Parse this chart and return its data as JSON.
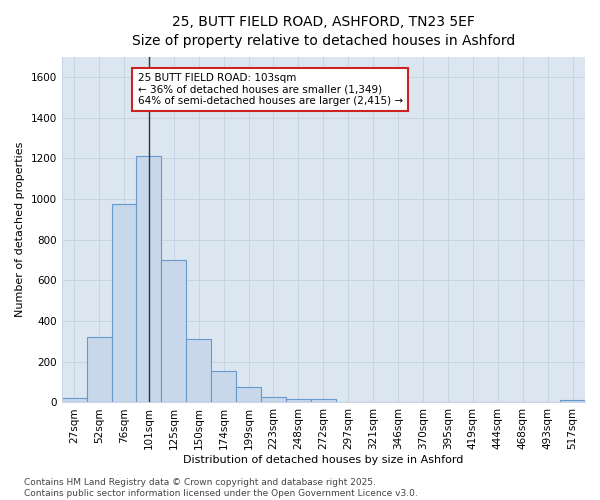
{
  "title_line1": "25, BUTT FIELD ROAD, ASHFORD, TN23 5EF",
  "title_line2": "Size of property relative to detached houses in Ashford",
  "xlabel": "Distribution of detached houses by size in Ashford",
  "ylabel": "Number of detached properties",
  "categories": [
    "27sqm",
    "52sqm",
    "76sqm",
    "101sqm",
    "125sqm",
    "150sqm",
    "174sqm",
    "199sqm",
    "223sqm",
    "248sqm",
    "272sqm",
    "297sqm",
    "321sqm",
    "346sqm",
    "370sqm",
    "395sqm",
    "419sqm",
    "444sqm",
    "468sqm",
    "493sqm",
    "517sqm"
  ],
  "values": [
    20,
    320,
    975,
    1210,
    700,
    310,
    155,
    75,
    25,
    15,
    15,
    0,
    0,
    0,
    0,
    0,
    0,
    0,
    0,
    0,
    10
  ],
  "bar_color": "#c8d8ea",
  "bar_edge_color": "#6699cc",
  "marker_index": 3,
  "annotation_line1": "25 BUTT FIELD ROAD: 103sqm",
  "annotation_line2": "← 36% of detached houses are smaller (1,349)",
  "annotation_line3": "64% of semi-detached houses are larger (2,415) →",
  "annotation_box_facecolor": "#ffffff",
  "annotation_box_edgecolor": "#cc2222",
  "vline_color": "#333333",
  "ylim": [
    0,
    1700
  ],
  "yticks": [
    0,
    200,
    400,
    600,
    800,
    1000,
    1200,
    1400,
    1600
  ],
  "grid_color": "#c8d4e4",
  "background_color": "#ffffff",
  "plot_bg_color": "#dce6f0",
  "footer_line1": "Contains HM Land Registry data © Crown copyright and database right 2025.",
  "footer_line2": "Contains public sector information licensed under the Open Government Licence v3.0.",
  "title_fontsize": 10,
  "axis_fontsize": 8,
  "tick_fontsize": 7.5,
  "footer_fontsize": 6.5
}
